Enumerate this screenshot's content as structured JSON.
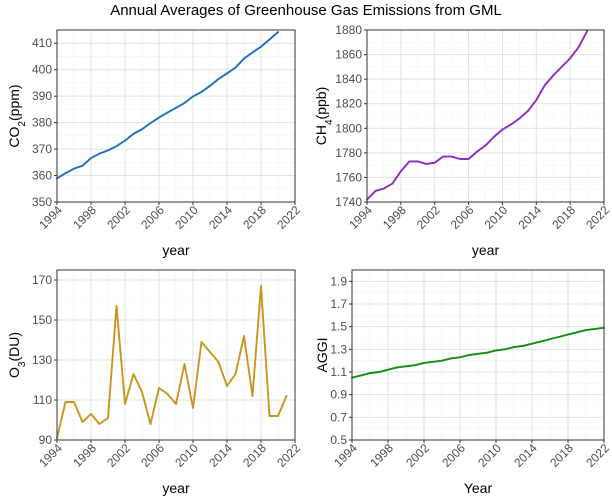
{
  "title": "Annual Averages of Greenhouse Gas Emissions from GML",
  "chart_data": [
    {
      "id": "co2",
      "type": "line",
      "xlabel": "year",
      "ylabel": "CO2(ppm)",
      "ylabel_main": "CO",
      "ylabel_sub": "2",
      "ylabel_tail": "(ppm)",
      "xlim": [
        1994,
        2022
      ],
      "ylim": [
        350,
        415
      ],
      "xticks": [
        "1994",
        "1998",
        "2002",
        "2006",
        "2010",
        "2014",
        "2018",
        "2022"
      ],
      "yticks": [
        "350",
        "360",
        "370",
        "380",
        "390",
        "400",
        "410"
      ],
      "color": "#1f6fc2",
      "grid": true,
      "series": [
        {
          "x": [
            1994,
            1995,
            1996,
            1997,
            1998,
            1999,
            2000,
            2001,
            2002,
            2003,
            2004,
            2005,
            2006,
            2007,
            2008,
            2009,
            2010,
            2011,
            2012,
            2013,
            2014,
            2015,
            2016,
            2017,
            2018,
            2019,
            2020
          ],
          "y": [
            358.9,
            360.9,
            362.6,
            363.7,
            366.6,
            368.3,
            369.5,
            371.1,
            373.2,
            375.8,
            377.5,
            379.8,
            381.9,
            383.8,
            385.6,
            387.4,
            389.9,
            391.6,
            393.9,
            396.5,
            398.6,
            400.8,
            404.2,
            406.5,
            408.7,
            411.4,
            414.2
          ]
        }
      ]
    },
    {
      "id": "ch4",
      "type": "line",
      "xlabel": "year",
      "ylabel": "CH4(ppb)",
      "ylabel_main": "CH",
      "ylabel_sub": "4",
      "ylabel_tail": "(ppb)",
      "xlim": [
        1994,
        2022
      ],
      "ylim": [
        1740,
        1880
      ],
      "xticks": [
        "1994",
        "1998",
        "2002",
        "2006",
        "2010",
        "2014",
        "2018",
        "2022"
      ],
      "yticks": [
        "1740",
        "1760",
        "1780",
        "1800",
        "1820",
        "1840",
        "1860",
        "1880"
      ],
      "color": "#8b2cc7",
      "grid": true,
      "series": [
        {
          "x": [
            1994,
            1995,
            1996,
            1997,
            1998,
            1999,
            2000,
            2001,
            2002,
            2003,
            2004,
            2005,
            2006,
            2007,
            2008,
            2009,
            2010,
            2011,
            2012,
            2013,
            2014,
            2015,
            2016,
            2017,
            2018,
            2019,
            2020
          ],
          "y": [
            1742,
            1749,
            1751,
            1755,
            1765,
            1773,
            1773,
            1771,
            1772,
            1777,
            1777,
            1775,
            1775,
            1781,
            1786,
            1793,
            1799,
            1803,
            1808,
            1814,
            1823,
            1835,
            1843,
            1850,
            1857,
            1866,
            1879
          ]
        }
      ]
    },
    {
      "id": "o3",
      "type": "line",
      "xlabel": "year",
      "ylabel": "O3(DU)",
      "ylabel_main": "O",
      "ylabel_sub": "3",
      "ylabel_tail": "(DU)",
      "xlim": [
        1994,
        2022
      ],
      "ylim": [
        90,
        175
      ],
      "xticks": [
        "1994",
        "1998",
        "2002",
        "2006",
        "2010",
        "2014",
        "2018",
        "2022"
      ],
      "yticks": [
        "90",
        "110",
        "130",
        "150",
        "170"
      ],
      "color": "#c8961f",
      "grid": true,
      "series": [
        {
          "x": [
            1994,
            1995,
            1996,
            1997,
            1998,
            1999,
            2000,
            2001,
            2002,
            2003,
            2004,
            2005,
            2006,
            2007,
            2008,
            2009,
            2010,
            2011,
            2012,
            2013,
            2014,
            2015,
            2016,
            2017,
            2018,
            2019,
            2020,
            2021
          ],
          "y": [
            91,
            109,
            109,
            99,
            103,
            98,
            101,
            157,
            108,
            123,
            114,
            98,
            116,
            113,
            108,
            128,
            106,
            139,
            134,
            129,
            117,
            123,
            142,
            112,
            167,
            102,
            102,
            112
          ]
        }
      ]
    },
    {
      "id": "aggi",
      "type": "line",
      "xlabel": "Year",
      "ylabel": "AGGI",
      "ylabel_main": "AGGI",
      "ylabel_sub": "",
      "ylabel_tail": "",
      "xlim": [
        1994,
        2022
      ],
      "ylim": [
        0.5,
        2.0
      ],
      "xticks": [
        "1994",
        "1998",
        "2002",
        "2006",
        "2010",
        "2014",
        "2018",
        "2022"
      ],
      "yticks": [
        "0.5",
        "0.7",
        "0.9",
        "1.1",
        "1.3",
        "1.5",
        "1.7",
        "1.9"
      ],
      "color": "#118f11",
      "grid": true,
      "series": [
        {
          "x": [
            1994,
            1995,
            1996,
            1997,
            1998,
            1999,
            2000,
            2001,
            2002,
            2003,
            2004,
            2005,
            2006,
            2007,
            2008,
            2009,
            2010,
            2011,
            2012,
            2013,
            2014,
            2015,
            2016,
            2017,
            2018,
            2019,
            2020,
            2021,
            2022
          ],
          "y": [
            1.05,
            1.07,
            1.09,
            1.1,
            1.12,
            1.14,
            1.15,
            1.16,
            1.18,
            1.19,
            1.2,
            1.22,
            1.23,
            1.25,
            1.26,
            1.27,
            1.29,
            1.3,
            1.32,
            1.33,
            1.35,
            1.37,
            1.39,
            1.41,
            1.43,
            1.45,
            1.47,
            1.48,
            1.49
          ]
        }
      ]
    }
  ]
}
